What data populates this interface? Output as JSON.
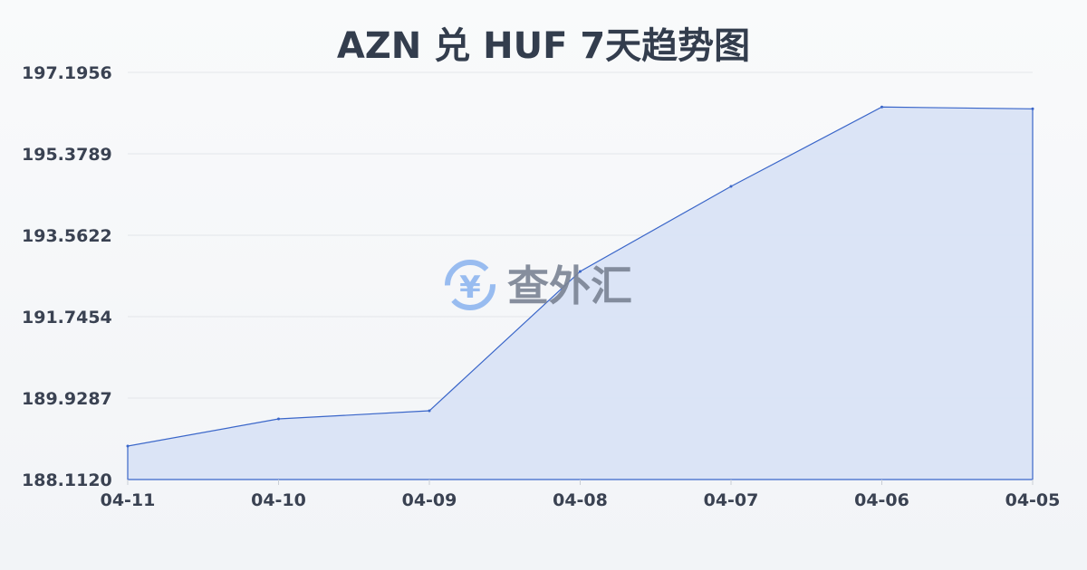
{
  "chart_data": {
    "type": "area",
    "title": "AZN 兑 HUF 7天趋势图",
    "categories": [
      "04-11",
      "04-10",
      "04-09",
      "04-08",
      "04-07",
      "04-06",
      "04-05"
    ],
    "values": [
      188.859,
      189.464,
      189.646,
      192.755,
      194.652,
      196.423,
      196.382
    ],
    "yticks": [
      "197.1956",
      "195.3789",
      "193.5622",
      "191.7454",
      "189.9287",
      "188.1120"
    ],
    "ylim": [
      188.112,
      197.1956
    ],
    "grid": true,
    "colors": {
      "line": "#3a66c9",
      "fill": "#d9e3f6",
      "grid": "#e3e6ea"
    }
  },
  "watermark": {
    "text": "查外汇",
    "icon": "yen-exchange-icon",
    "icon_glyph": "¥",
    "color": "#8fb6f0"
  }
}
